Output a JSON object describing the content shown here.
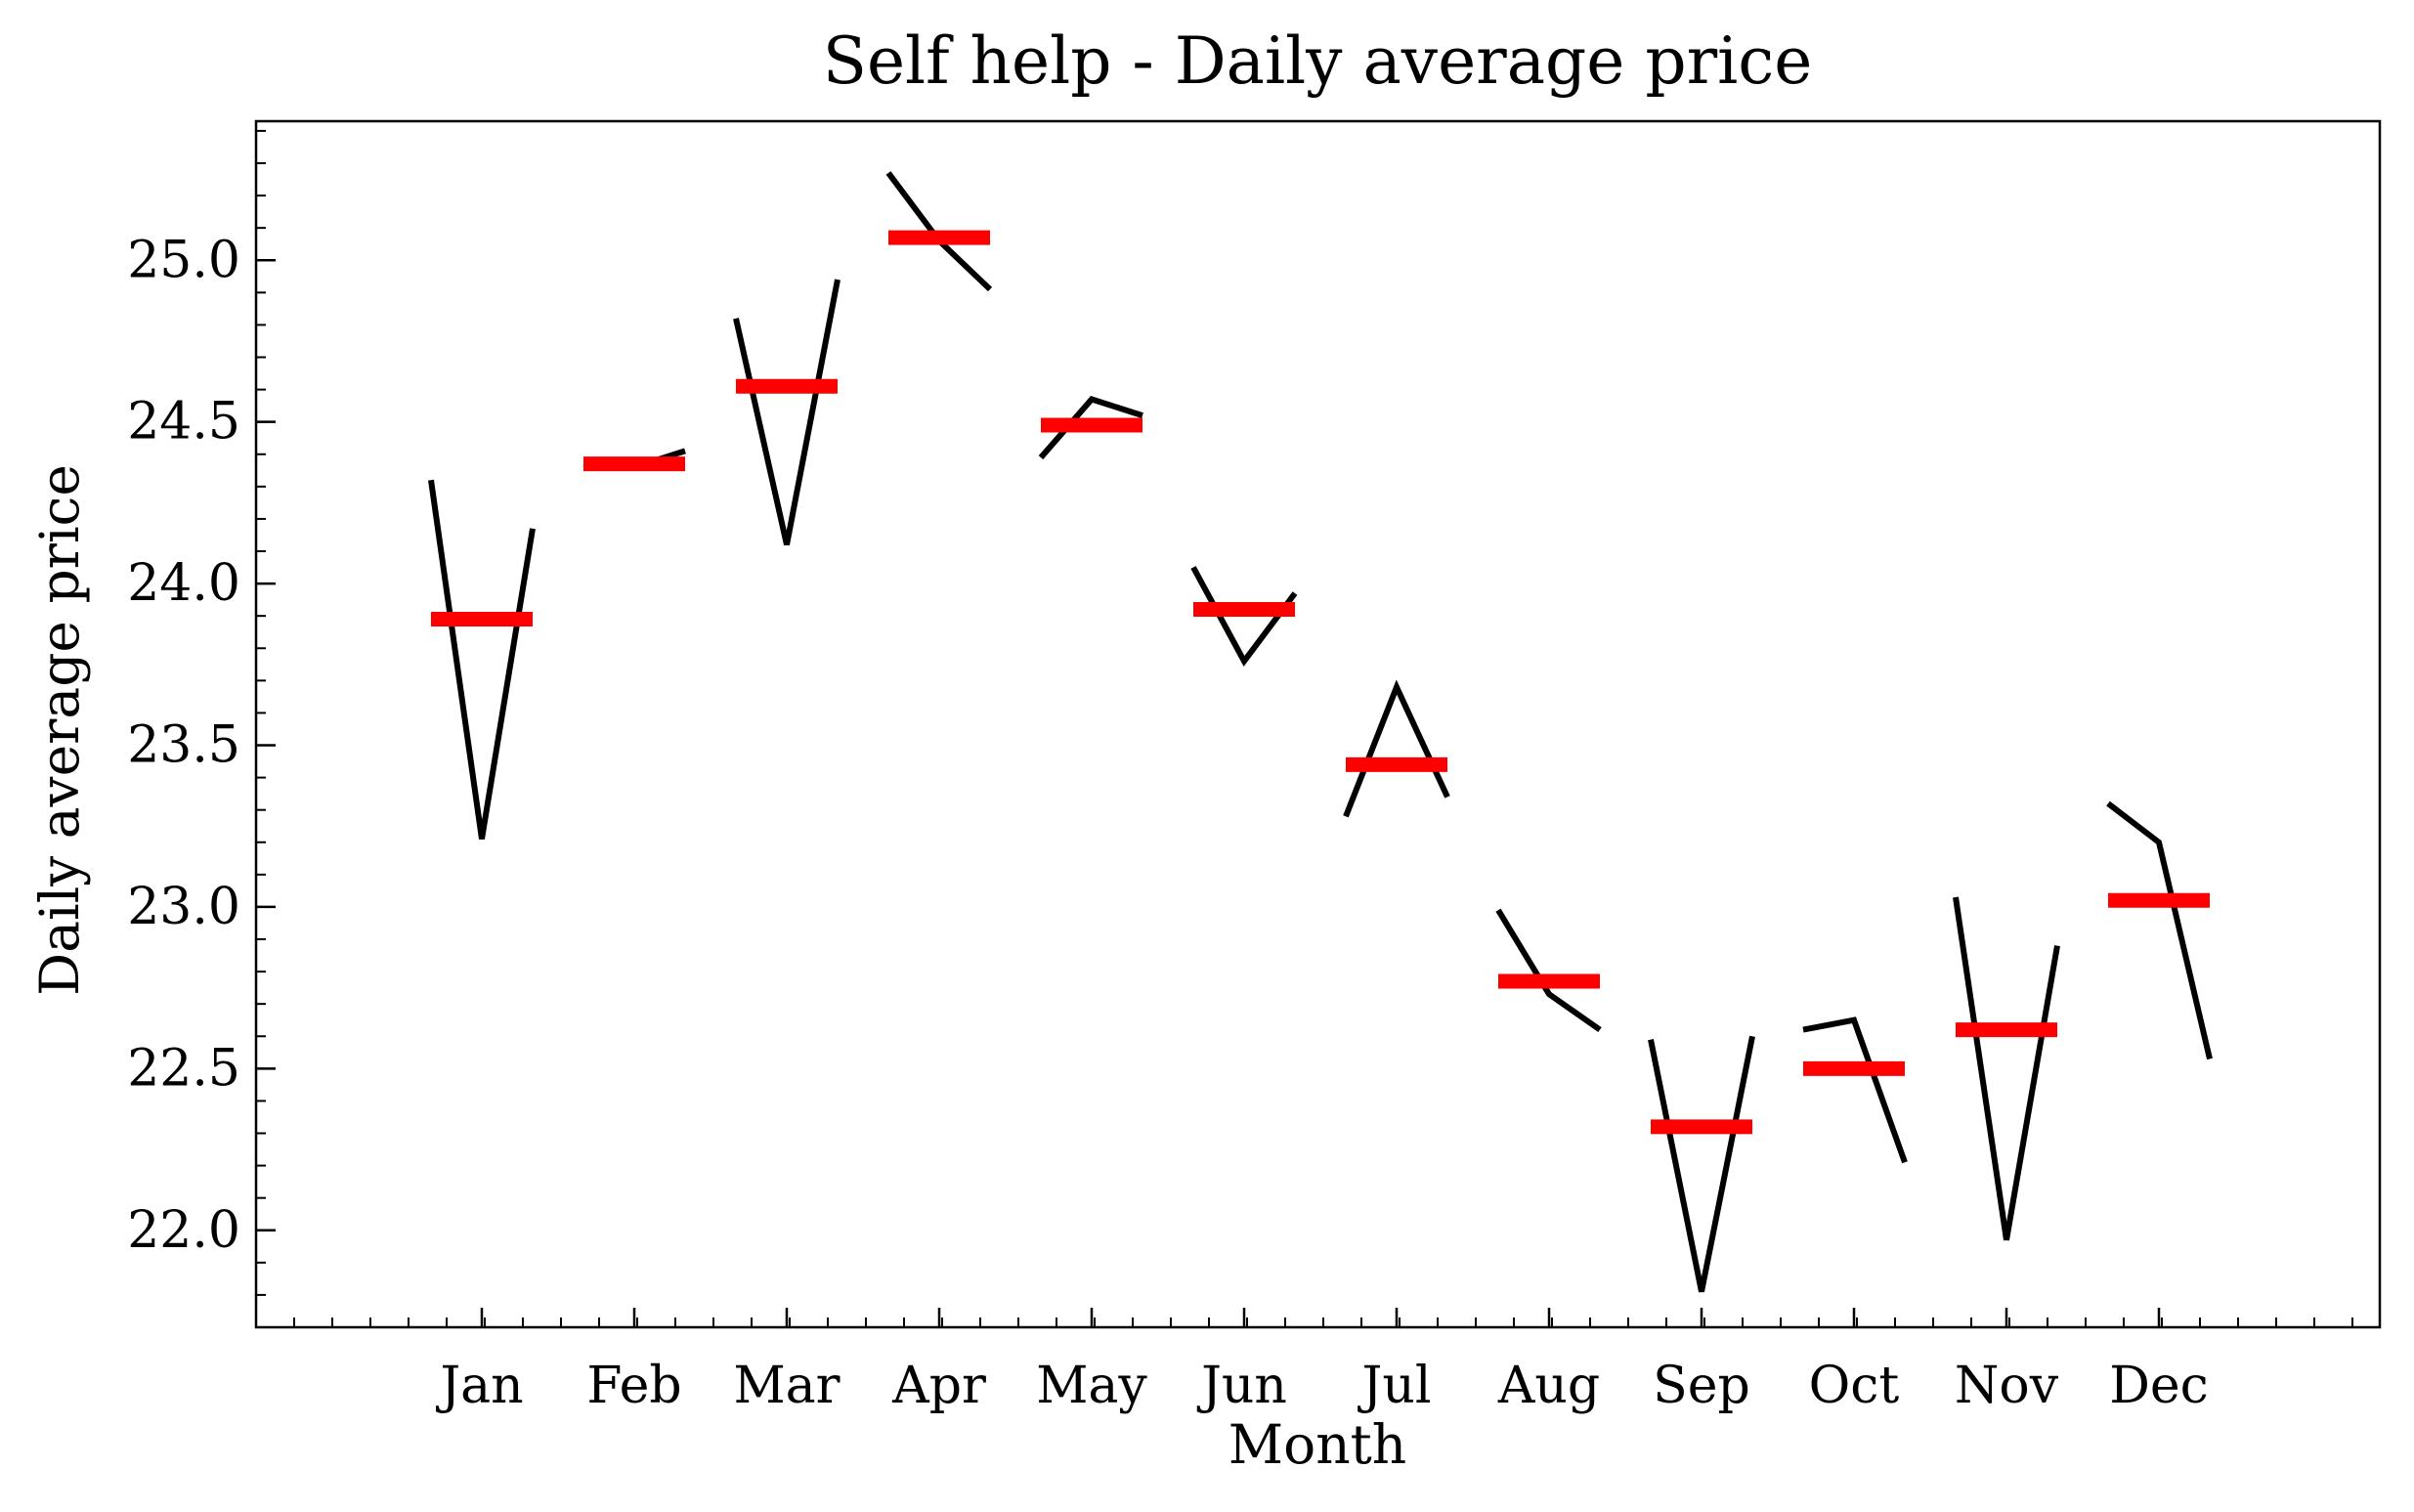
{
  "chart_data": {
    "type": "line",
    "title": "Self help - Daily average price",
    "xlabel": "Month",
    "ylabel": "Daily average price",
    "categories": [
      "Jan",
      "Feb",
      "Mar",
      "Apr",
      "May",
      "Jun",
      "Jul",
      "Aug",
      "Sep",
      "Oct",
      "Nov",
      "Dec"
    ],
    "ylim": [
      21.7,
      25.43
    ],
    "yticks": [
      "22.0",
      "22.5",
      "23.0",
      "23.5",
      "24.0",
      "24.5",
      "25.0"
    ],
    "grid": false,
    "series": [
      {
        "color": "#000000",
        "style": "line",
        "values": [
          [
            24.32,
            23.21,
            24.17
          ],
          [
            24.37,
            24.36,
            24.41
          ],
          [
            24.82,
            24.12,
            24.94
          ],
          [
            25.27,
            25.06,
            24.91
          ],
          [
            24.39,
            24.57,
            24.52
          ],
          [
            24.05,
            23.76,
            23.97
          ],
          [
            23.28,
            23.68,
            23.34
          ],
          [
            22.99,
            22.73,
            22.62
          ],
          [
            22.59,
            21.81,
            22.6
          ],
          [
            22.62,
            22.65,
            22.21
          ],
          [
            23.03,
            21.97,
            22.88
          ],
          [
            23.32,
            23.2,
            22.53
          ]
        ]
      },
      {
        "color": "#ff0000",
        "style": "mean-bar",
        "values": [
          23.89,
          24.37,
          24.61,
          25.07,
          24.49,
          23.92,
          23.44,
          22.77,
          22.32,
          22.5,
          22.62,
          23.02
        ]
      }
    ]
  }
}
